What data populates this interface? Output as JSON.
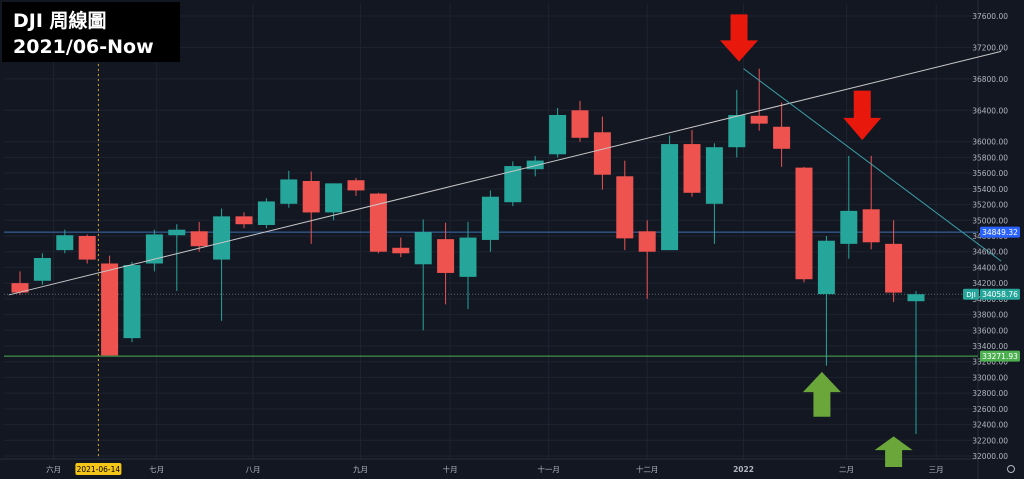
{
  "title": {
    "line1": "DJI 周線圖",
    "line2": "2021/06-Now"
  },
  "colors": {
    "background": "#131722",
    "up": "#26a69a",
    "down": "#ef5350",
    "grid": "#1e2330",
    "axis_text": "#b2b5be",
    "trendline_rising": "#c8c8c8",
    "trendline_falling": "#3aa0a8",
    "resistance_line": "#3f6fb0",
    "support_line": "#4caf50",
    "current_price": "#26a69a",
    "arrow_down": "#e8180c",
    "arrow_up": "#6aa63a"
  },
  "chart_data": {
    "type": "candlestick",
    "yaxis": {
      "min": 31850,
      "max": 37700,
      "ticks": [
        32000,
        32200,
        32400,
        32600,
        32800,
        33000,
        33200,
        33400,
        33600,
        33800,
        34000,
        34200,
        34400,
        34600,
        34800,
        35000,
        35200,
        35400,
        35600,
        35800,
        36000,
        36400,
        36800,
        37200,
        37600
      ]
    },
    "tick_labels": [
      "32000.00",
      "32200.00",
      "32400.00",
      "32600.00",
      "32800.00",
      "33000.00",
      "33200.00",
      "33400.00",
      "33600.00",
      "33800.00",
      "34000.00",
      "34200.00",
      "34400.00",
      "34600.00",
      "34800.00",
      "35000.00",
      "35200.00",
      "35400.00",
      "35600.00",
      "35800.00",
      "36000.00",
      "36400.00",
      "36800.00",
      "37200.00",
      "37600.00"
    ],
    "xlabels": [
      {
        "label": "六月",
        "at": 1.5
      },
      {
        "label": "2021-06-14",
        "at": 3.5,
        "highlight": true
      },
      {
        "label": "七月",
        "at": 6.1
      },
      {
        "label": "八月",
        "at": 10.4
      },
      {
        "label": "九月",
        "at": 15.2
      },
      {
        "label": "十月",
        "at": 19.2
      },
      {
        "label": "十一月",
        "at": 23.6
      },
      {
        "label": "十二月",
        "at": 28.0
      },
      {
        "label": "2022",
        "at": 32.3
      },
      {
        "label": "二月",
        "at": 36.9
      },
      {
        "label": "三月",
        "at": 40.9
      }
    ],
    "candles": [
      {
        "o": 34200,
        "h": 34350,
        "l": 34050,
        "c": 34080
      },
      {
        "o": 34230,
        "h": 34580,
        "l": 34180,
        "c": 34520
      },
      {
        "o": 34620,
        "h": 34880,
        "l": 34580,
        "c": 34810
      },
      {
        "o": 34800,
        "h": 34820,
        "l": 34450,
        "c": 34500
      },
      {
        "o": 34450,
        "h": 34550,
        "l": 33280,
        "c": 33280
      },
      {
        "o": 33500,
        "h": 34470,
        "l": 33450,
        "c": 34430
      },
      {
        "o": 34450,
        "h": 34880,
        "l": 34350,
        "c": 34820
      },
      {
        "o": 34810,
        "h": 34950,
        "l": 34100,
        "c": 34880
      },
      {
        "o": 34860,
        "h": 34980,
        "l": 34600,
        "c": 34670
      },
      {
        "o": 34500,
        "h": 35150,
        "l": 33720,
        "c": 35050
      },
      {
        "o": 35050,
        "h": 35100,
        "l": 34900,
        "c": 34950
      },
      {
        "o": 34940,
        "h": 35280,
        "l": 34900,
        "c": 35240
      },
      {
        "o": 35210,
        "h": 35630,
        "l": 35160,
        "c": 35520
      },
      {
        "o": 35500,
        "h": 35620,
        "l": 34700,
        "c": 35100
      },
      {
        "o": 35100,
        "h": 35470,
        "l": 35000,
        "c": 35470
      },
      {
        "o": 35510,
        "h": 35540,
        "l": 35310,
        "c": 35380
      },
      {
        "o": 35340,
        "h": 35350,
        "l": 34580,
        "c": 34600
      },
      {
        "o": 34650,
        "h": 34780,
        "l": 34530,
        "c": 34580
      },
      {
        "o": 34440,
        "h": 35010,
        "l": 33600,
        "c": 34850
      },
      {
        "o": 34760,
        "h": 34970,
        "l": 33930,
        "c": 34330
      },
      {
        "o": 34280,
        "h": 34980,
        "l": 33870,
        "c": 34780
      },
      {
        "o": 34750,
        "h": 35380,
        "l": 34600,
        "c": 35300
      },
      {
        "o": 35230,
        "h": 35750,
        "l": 35180,
        "c": 35690
      },
      {
        "o": 35650,
        "h": 35820,
        "l": 35560,
        "c": 35760
      },
      {
        "o": 35840,
        "h": 36430,
        "l": 35800,
        "c": 36340
      },
      {
        "o": 36400,
        "h": 36520,
        "l": 36000,
        "c": 36050
      },
      {
        "o": 36120,
        "h": 36320,
        "l": 35390,
        "c": 35580
      },
      {
        "o": 35560,
        "h": 35760,
        "l": 34620,
        "c": 34770
      },
      {
        "o": 34860,
        "h": 35000,
        "l": 34000,
        "c": 34600
      },
      {
        "o": 34620,
        "h": 36080,
        "l": 34620,
        "c": 35970
      },
      {
        "o": 35970,
        "h": 36150,
        "l": 35300,
        "c": 35350
      },
      {
        "o": 35210,
        "h": 35980,
        "l": 34700,
        "c": 35930
      },
      {
        "o": 35930,
        "h": 36660,
        "l": 35800,
        "c": 36340
      },
      {
        "o": 36330,
        "h": 36930,
        "l": 36140,
        "c": 36230
      },
      {
        "o": 36190,
        "h": 36500,
        "l": 35680,
        "c": 35910
      },
      {
        "o": 35670,
        "h": 35680,
        "l": 34210,
        "c": 34250
      },
      {
        "o": 34060,
        "h": 34800,
        "l": 33150,
        "c": 34740
      },
      {
        "o": 34700,
        "h": 35820,
        "l": 34510,
        "c": 35120
      },
      {
        "o": 35140,
        "h": 35820,
        "l": 34630,
        "c": 34720
      },
      {
        "o": 34700,
        "h": 35000,
        "l": 33960,
        "c": 34080
      },
      {
        "o": 33970,
        "h": 34100,
        "l": 32280,
        "c": 34058.76
      }
    ],
    "levels": {
      "resistance": 34849.32,
      "support": 33271.93,
      "current": 34058.76
    },
    "price_tags": {
      "resistance": "34849.32",
      "support": "33271.93",
      "current_symbol": "DJI",
      "current": "34058.76"
    },
    "trendlines": [
      {
        "name": "rising",
        "from": {
          "i": -0.5,
          "p": 34050
        },
        "to": {
          "i": 43.8,
          "p": 37150
        }
      },
      {
        "name": "falling",
        "from": {
          "i": 32.3,
          "p": 36930
        },
        "to": {
          "i": 43.8,
          "p": 34480
        }
      }
    ],
    "arrows": [
      {
        "dir": "down",
        "i": 32.1,
        "p_top": 37620,
        "p_bottom": 37020
      },
      {
        "dir": "down",
        "i": 37.6,
        "p_top": 36650,
        "p_bottom": 36020
      },
      {
        "dir": "up",
        "i": 35.8,
        "p_top": 33070,
        "p_bottom": 32500
      },
      {
        "dir": "up",
        "i": 39.0,
        "p_top": 32250,
        "p_bottom": 31860
      }
    ],
    "vline_at": 3.5
  }
}
